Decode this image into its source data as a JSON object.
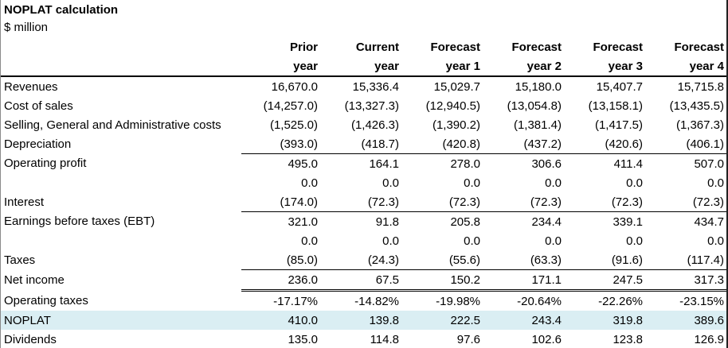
{
  "title": "NOPLAT calculation",
  "subtitle": "$ million",
  "colors": {
    "highlight_fill": "#daeef3",
    "rule_color": "#000000",
    "text_color": "#000000"
  },
  "table": {
    "column_headers": [
      {
        "key": "prior-year",
        "line1": "Prior",
        "line2": "year"
      },
      {
        "key": "current-year",
        "line1": "Current",
        "line2": "year"
      },
      {
        "key": "forecast-year-1",
        "line1": "Forecast",
        "line2": "year 1"
      },
      {
        "key": "forecast-year-2",
        "line1": "Forecast",
        "line2": "year 2"
      },
      {
        "key": "forecast-year-3",
        "line1": "Forecast",
        "line2": "year 3"
      },
      {
        "key": "forecast-year-4",
        "line1": "Forecast",
        "line2": "year 4"
      }
    ],
    "rows": [
      {
        "name": "revenues",
        "label": "Revenues",
        "rule": "none",
        "highlight": false,
        "values": [
          "16,670.0",
          "15,336.4",
          "15,029.7",
          "15,180.0",
          "15,407.7",
          "15,715.8"
        ]
      },
      {
        "name": "cost-of-sales",
        "label": "Cost of sales",
        "rule": "none",
        "highlight": false,
        "values": [
          "(14,257.0)",
          "(13,327.3)",
          "(12,940.5)",
          "(13,054.8)",
          "(13,158.1)",
          "(13,435.5)"
        ]
      },
      {
        "name": "sga-costs",
        "label": "Selling, General and Administrative costs",
        "rule": "none",
        "highlight": false,
        "values": [
          "(1,525.0)",
          "(1,426.3)",
          "(1,390.2)",
          "(1,381.4)",
          "(1,417.5)",
          "(1,367.3)"
        ]
      },
      {
        "name": "depreciation",
        "label": "Depreciation",
        "rule": "single",
        "highlight": false,
        "values": [
          "(393.0)",
          "(418.7)",
          "(420.8)",
          "(437.2)",
          "(420.6)",
          "(406.1)"
        ]
      },
      {
        "name": "operating-profit",
        "label": "Operating profit",
        "rule": "none",
        "highlight": false,
        "values": [
          "495.0",
          "164.1",
          "278.0",
          "306.6",
          "411.4",
          "507.0"
        ]
      },
      {
        "name": "adjustment-1",
        "label": "",
        "rule": "none",
        "highlight": false,
        "values": [
          "0.0",
          "0.0",
          "0.0",
          "0.0",
          "0.0",
          "0.0"
        ]
      },
      {
        "name": "interest",
        "label": "Interest",
        "rule": "single",
        "highlight": false,
        "values": [
          "(174.0)",
          "(72.3)",
          "(72.3)",
          "(72.3)",
          "(72.3)",
          "(72.3)"
        ]
      },
      {
        "name": "ebt",
        "label": "Earnings before taxes (EBT)",
        "rule": "none",
        "highlight": false,
        "values": [
          "321.0",
          "91.8",
          "205.8",
          "234.4",
          "339.1",
          "434.7"
        ]
      },
      {
        "name": "adjustment-2",
        "label": "",
        "rule": "none",
        "highlight": false,
        "values": [
          "0.0",
          "0.0",
          "0.0",
          "0.0",
          "0.0",
          "0.0"
        ]
      },
      {
        "name": "taxes",
        "label": "Taxes",
        "rule": "single",
        "highlight": false,
        "values": [
          "(85.0)",
          "(24.3)",
          "(55.6)",
          "(63.3)",
          "(91.6)",
          "(117.4)"
        ]
      },
      {
        "name": "net-income",
        "label": "Net income",
        "rule": "double",
        "highlight": false,
        "values": [
          "236.0",
          "67.5",
          "150.2",
          "171.1",
          "247.5",
          "317.3"
        ]
      },
      {
        "name": "operating-taxes",
        "label": "Operating taxes",
        "rule": "none",
        "highlight": false,
        "values": [
          "-17.17%",
          "-14.82%",
          "-19.98%",
          "-20.64%",
          "-22.26%",
          "-23.15%"
        ]
      },
      {
        "name": "noplat",
        "label": "NOPLAT",
        "rule": "none",
        "highlight": true,
        "values": [
          "410.0",
          "139.8",
          "222.5",
          "243.4",
          "319.8",
          "389.6"
        ]
      },
      {
        "name": "dividends",
        "label": "Dividends",
        "rule": "none",
        "highlight": false,
        "values": [
          "135.0",
          "114.8",
          "97.6",
          "102.6",
          "123.8",
          "126.9"
        ]
      }
    ]
  }
}
